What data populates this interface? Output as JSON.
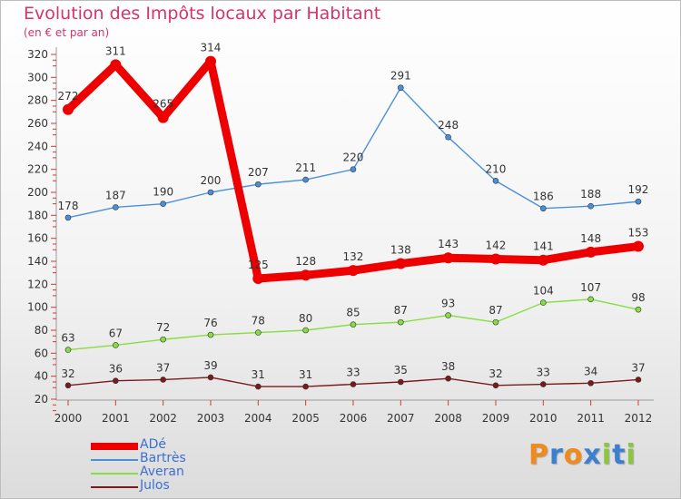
{
  "chart_data": {
    "type": "line",
    "title": "Evolution des Impôts locaux par Habitant",
    "subtitle": "(en € et par an)",
    "categories": [
      "2000",
      "2001",
      "2002",
      "2003",
      "2004",
      "2005",
      "2006",
      "2007",
      "2008",
      "2009",
      "2010",
      "2011",
      "2012"
    ],
    "ylim": [
      20,
      320
    ],
    "yticks": [
      20,
      40,
      60,
      80,
      100,
      120,
      140,
      160,
      180,
      200,
      220,
      240,
      260,
      280,
      300,
      320
    ],
    "grid": false,
    "legend_position": "bottom-left",
    "series": [
      {
        "name": "ADé",
        "color": "#ee0000",
        "values": [
          272,
          311,
          265,
          314,
          125,
          128,
          132,
          138,
          143,
          142,
          141,
          148,
          153
        ]
      },
      {
        "name": "Bartrès",
        "color": "#4a90d9",
        "values": [
          178,
          187,
          190,
          200,
          207,
          211,
          220,
          291,
          248,
          210,
          186,
          188,
          192
        ]
      },
      {
        "name": "Averan",
        "color": "#88dd44",
        "values": [
          63,
          67,
          72,
          76,
          78,
          80,
          85,
          87,
          93,
          87,
          104,
          107,
          98
        ]
      },
      {
        "name": "Julos",
        "color": "#7a1a1a",
        "values": [
          32,
          36,
          37,
          39,
          31,
          31,
          33,
          35,
          38,
          32,
          33,
          34,
          37
        ]
      }
    ]
  },
  "logo": {
    "letters": [
      {
        "ch": "P",
        "color": "#f08a1c"
      },
      {
        "ch": "r",
        "color": "#3a7fd0"
      },
      {
        "ch": "o",
        "color": "#f08a1c"
      },
      {
        "ch": "x",
        "color": "#3a7fd0"
      },
      {
        "ch": "i",
        "color": "#8bc63f"
      },
      {
        "ch": "t",
        "color": "#3a7fd0"
      },
      {
        "ch": "i",
        "color": "#8bc63f"
      }
    ]
  }
}
